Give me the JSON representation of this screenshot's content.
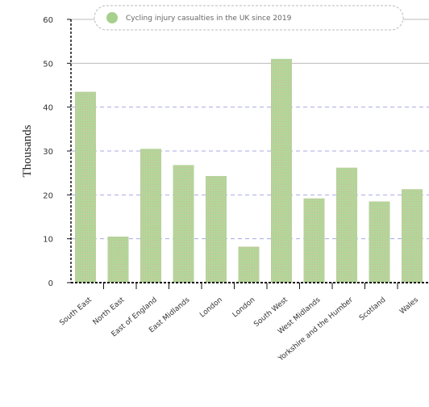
{
  "chart_data": {
    "type": "bar",
    "title": "",
    "xlabel": "",
    "ylabel": "Thousands",
    "ylim": [
      0,
      60
    ],
    "yticks": [
      0,
      10,
      20,
      30,
      40,
      50,
      60
    ],
    "grid": true,
    "legend_position": "top-right",
    "categories": [
      "South East",
      "North East",
      "East of England",
      "East Midlands",
      "London",
      "London",
      "South West",
      "West Midlands",
      "Yorkshire and the Humber",
      "Scotland",
      "Wales"
    ],
    "series": [
      {
        "name": "Cycling injury casualties in the UK since 2019",
        "color": "#a8d08d",
        "values": [
          43.5,
          10.5,
          30.5,
          26.8,
          24.3,
          8.2,
          51,
          19.2,
          26.2,
          18.5,
          21.3
        ]
      }
    ]
  }
}
